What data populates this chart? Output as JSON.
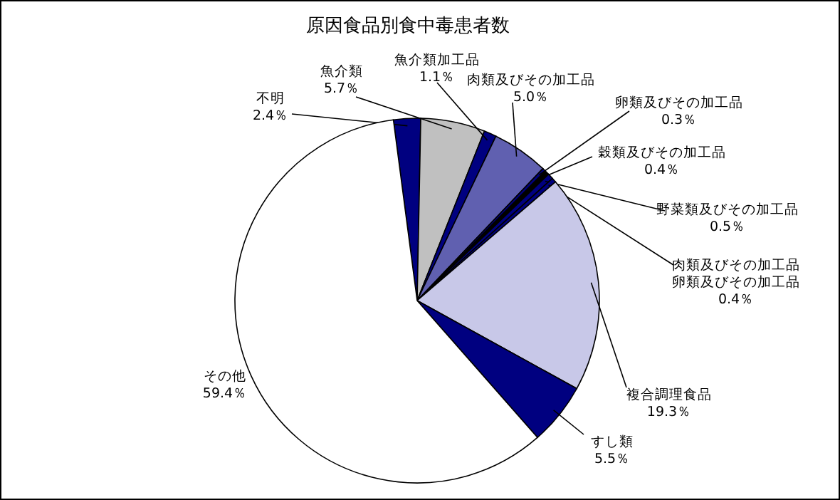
{
  "chart_data": {
    "type": "pie",
    "title": "原因食品別食中毒患者数",
    "categories": [
      "不明",
      "魚介類",
      "魚介類加工品",
      "肉類及びその加工品",
      "卵類及びその加工品",
      "穀類及びその加工品",
      "野菜類及びその加工品",
      "肉類及びその加工品卵類及びその加工品",
      "複合調理食品",
      "すし類",
      "その他"
    ],
    "values": [
      2.4,
      5.7,
      1.1,
      5.0,
      0.3,
      0.4,
      0.5,
      0.4,
      19.3,
      5.5,
      59.4
    ],
    "value_labels": [
      "2.4％",
      "5.7％",
      "1.1％",
      "5.0％",
      "0.3％",
      "0.4％",
      "0.5％",
      "0.4％",
      "19.3％",
      "5.5％",
      "59.4％"
    ],
    "colors": [
      "#000080",
      "#c0c0c0",
      "#000080",
      "#6060b0",
      "#000080",
      "#000000",
      "#000080",
      "#000080",
      "#c8c8e8",
      "#000080",
      "#ffffff"
    ]
  }
}
